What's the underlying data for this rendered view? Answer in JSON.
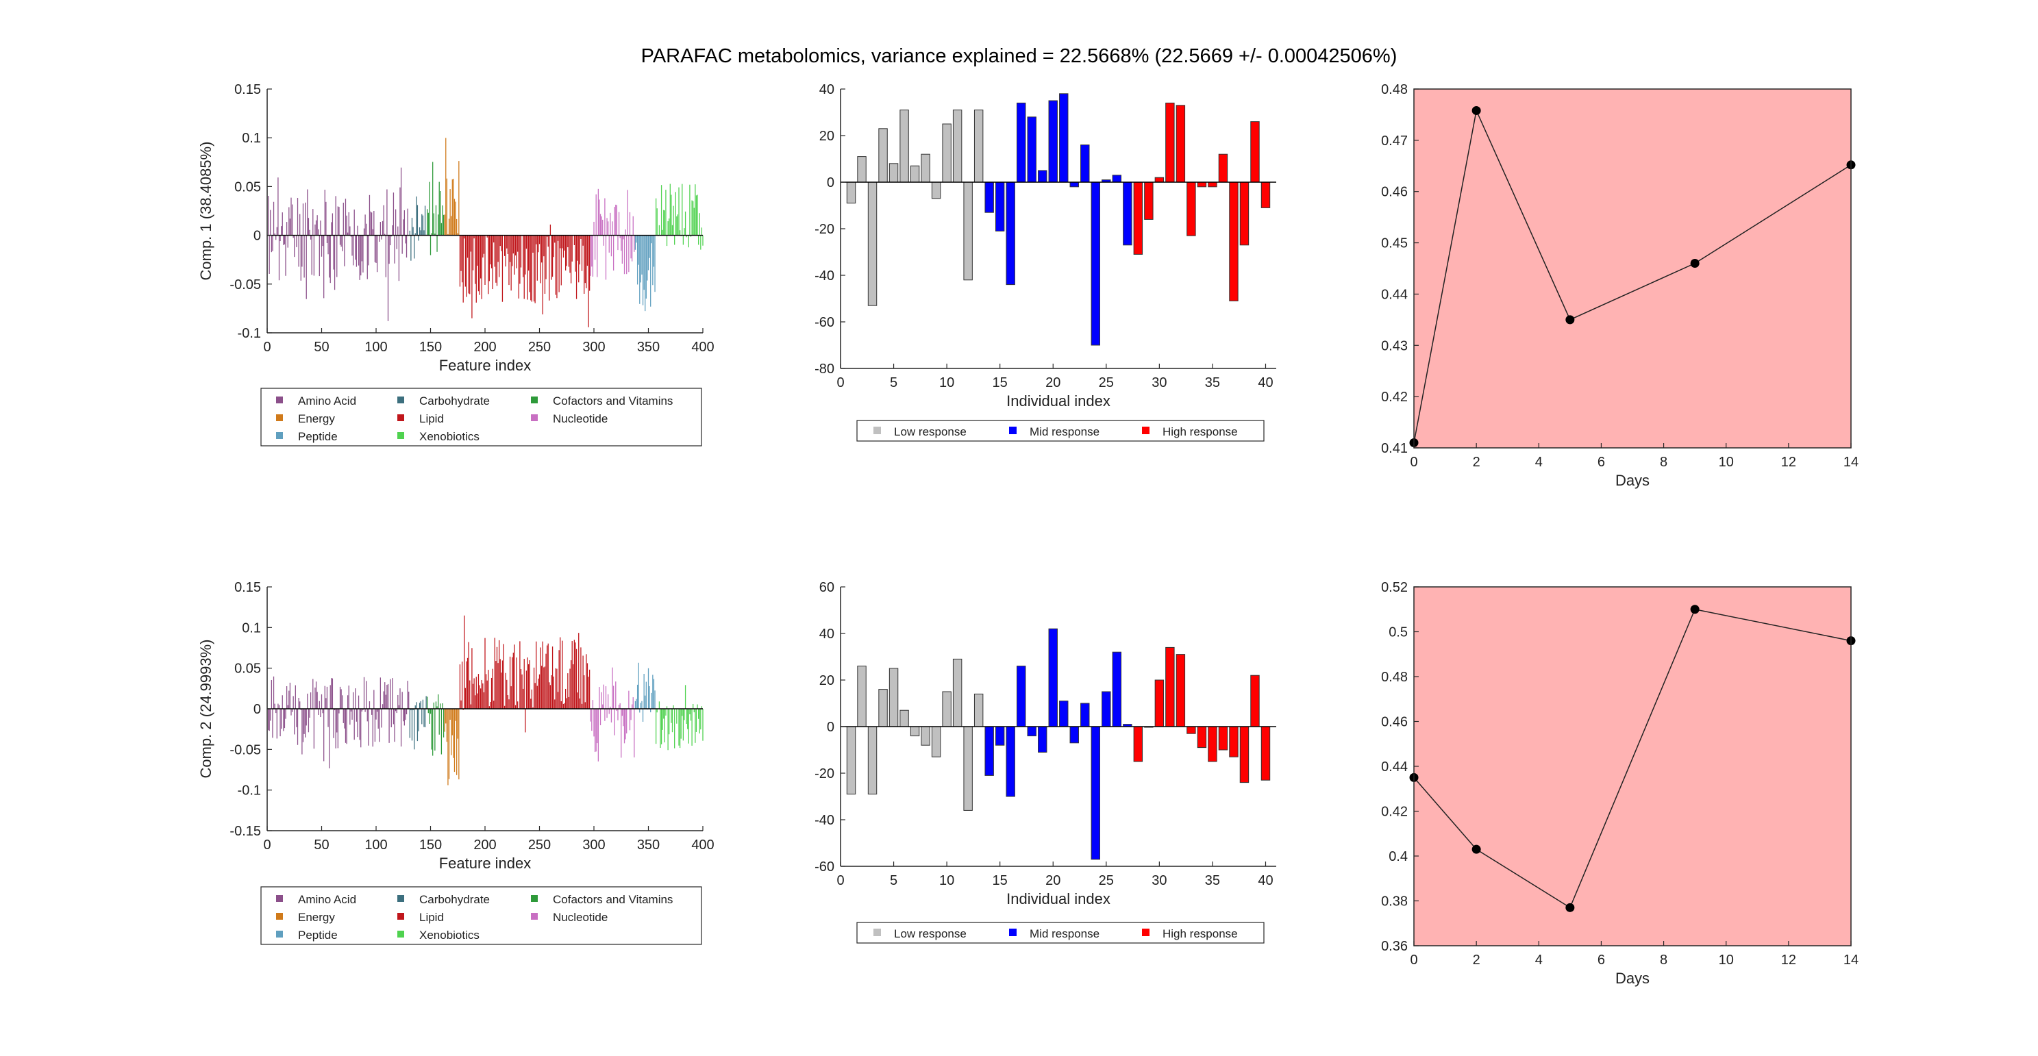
{
  "suptitle": "PARAFAC metabolomics, variance explained =  22.5668% (22.5669 +/- 0.00042506%)",
  "colors": {
    "Amino Acid": "#8b4f8a",
    "Carbohydrate": "#3c6f7e",
    "Cofactors and Vitamins": "#2e9a3a",
    "Energy": "#d07a1a",
    "Lipid": "#c0161b",
    "Nucleotide": "#c86fc2",
    "Peptide": "#5f9fbf",
    "Xenobiotics": "#4fd24f",
    "Low response": "#c0c0c0",
    "Mid response": "#0000ff",
    "High response": "#ff0000",
    "time_bg": "#ffb3b3"
  },
  "chart_data": [
    {
      "type": "bar",
      "panel": "Comp. 1 features",
      "ylabel": "Comp. 1 (38.4085%)",
      "xlabel": "Feature index",
      "xlim": [
        0,
        400
      ],
      "ylim": [
        -0.1,
        0.15
      ],
      "xticks": [
        0,
        50,
        100,
        150,
        200,
        250,
        300,
        350,
        400
      ],
      "yticks": [
        -0.1,
        -0.05,
        0,
        0.05,
        0.1,
        0.15
      ],
      "legend": [
        "Amino Acid",
        "Carbohydrate",
        "Cofactors and Vitamins",
        "Energy",
        "Lipid",
        "Nucleotide",
        "Peptide",
        "Xenobiotics"
      ],
      "groups": [
        {
          "name": "Amino Acid",
          "x": [
            1,
            130
          ],
          "seed": 11,
          "base": 0.0,
          "amp": 0.05,
          "min": -0.088,
          "max": 0.095
        },
        {
          "name": "Carbohydrate",
          "x": [
            131,
            146
          ],
          "seed": 12,
          "base": 0.0,
          "amp": 0.04,
          "min": -0.07,
          "max": 0.06
        },
        {
          "name": "Cofactors and Vitamins",
          "x": [
            147,
            162
          ],
          "seed": 13,
          "base": 0.02,
          "amp": 0.045,
          "min": -0.06,
          "max": 0.09
        },
        {
          "name": "Energy",
          "x": [
            163,
            176
          ],
          "seed": 14,
          "base": 0.03,
          "amp": 0.05,
          "min": -0.03,
          "max": 0.11
        },
        {
          "name": "Lipid",
          "x": [
            177,
            296
          ],
          "seed": 15,
          "base": -0.035,
          "amp": 0.035,
          "min": -0.098,
          "max": 0.1
        },
        {
          "name": "Nucleotide",
          "x": [
            297,
            337
          ],
          "seed": 16,
          "base": 0.0,
          "amp": 0.05,
          "min": -0.09,
          "max": 0.1
        },
        {
          "name": "Peptide",
          "x": [
            338,
            356
          ],
          "seed": 17,
          "base": -0.04,
          "amp": 0.04,
          "min": -0.095,
          "max": 0.02
        },
        {
          "name": "Xenobiotics",
          "x": [
            357,
            400
          ],
          "seed": 18,
          "base": 0.02,
          "amp": 0.035,
          "min": -0.02,
          "max": 0.1
        }
      ]
    },
    {
      "type": "bar",
      "panel": "Comp. 1 individuals",
      "xlabel": "Individual index",
      "xlim": [
        0,
        41
      ],
      "ylim": [
        -80,
        40
      ],
      "xticks": [
        0,
        5,
        10,
        15,
        20,
        25,
        30,
        35,
        40
      ],
      "yticks": [
        -80,
        -60,
        -40,
        -20,
        0,
        20,
        40
      ],
      "legend": [
        "Low response",
        "Mid response",
        "High response"
      ],
      "x": [
        1,
        2,
        3,
        4,
        5,
        6,
        7,
        8,
        9,
        10,
        11,
        12,
        13,
        14,
        15,
        16,
        17,
        18,
        19,
        20,
        21,
        22,
        23,
        24,
        25,
        26,
        27,
        28,
        29,
        30,
        31,
        32,
        33,
        34,
        35,
        36,
        37,
        38,
        39,
        40
      ],
      "values": [
        -9,
        11,
        -53,
        23,
        8,
        31,
        7,
        12,
        -7,
        25,
        31,
        -42,
        31,
        -13,
        -21,
        -44,
        34,
        28,
        5,
        35,
        38,
        -2,
        16,
        -70,
        1,
        3,
        -27,
        -31,
        -16,
        2,
        34,
        33,
        -23,
        -2,
        -2,
        12,
        -51,
        -27,
        26,
        -11
      ],
      "groups": [
        "Low response",
        "Low response",
        "Low response",
        "Low response",
        "Low response",
        "Low response",
        "Low response",
        "Low response",
        "Low response",
        "Low response",
        "Low response",
        "Low response",
        "Low response",
        "Mid response",
        "Mid response",
        "Mid response",
        "Mid response",
        "Mid response",
        "Mid response",
        "Mid response",
        "Mid response",
        "Mid response",
        "Mid response",
        "Mid response",
        "Mid response",
        "Mid response",
        "Mid response",
        "High response",
        "High response",
        "High response",
        "High response",
        "High response",
        "High response",
        "High response",
        "High response",
        "High response",
        "High response",
        "High response",
        "High response",
        "High response"
      ]
    },
    {
      "type": "line",
      "panel": "Comp. 1 time",
      "xlabel": "Days",
      "xlim": [
        0,
        14
      ],
      "ylim": [
        0.41,
        0.48
      ],
      "xticks": [
        0,
        2,
        4,
        6,
        8,
        10,
        12,
        14
      ],
      "yticks": [
        0.41,
        0.42,
        0.43,
        0.44,
        0.45,
        0.46,
        0.47,
        0.48
      ],
      "x": [
        0,
        2,
        5,
        9,
        14
      ],
      "y": [
        0.411,
        0.4758,
        0.435,
        0.446,
        0.4652
      ]
    },
    {
      "type": "bar",
      "panel": "Comp. 2 features",
      "ylabel": "Comp. 2 (24.9993%)",
      "xlabel": "Feature index",
      "xlim": [
        0,
        400
      ],
      "ylim": [
        -0.15,
        0.15
      ],
      "xticks": [
        0,
        50,
        100,
        150,
        200,
        250,
        300,
        350,
        400
      ],
      "yticks": [
        -0.15,
        -0.1,
        -0.05,
        0,
        0.05,
        0.1,
        0.15
      ],
      "legend": [
        "Amino Acid",
        "Carbohydrate",
        "Cofactors and Vitamins",
        "Energy",
        "Lipid",
        "Nucleotide",
        "Peptide",
        "Xenobiotics"
      ],
      "groups": [
        {
          "name": "Amino Acid",
          "x": [
            1,
            130
          ],
          "seed": 21,
          "base": -0.005,
          "amp": 0.045,
          "min": -0.09,
          "max": 0.08
        },
        {
          "name": "Carbohydrate",
          "x": [
            131,
            146
          ],
          "seed": 22,
          "base": -0.01,
          "amp": 0.03,
          "min": -0.05,
          "max": 0.05
        },
        {
          "name": "Cofactors and Vitamins",
          "x": [
            147,
            162
          ],
          "seed": 23,
          "base": -0.02,
          "amp": 0.04,
          "min": -0.08,
          "max": 0.04
        },
        {
          "name": "Energy",
          "x": [
            163,
            176
          ],
          "seed": 24,
          "base": -0.05,
          "amp": 0.04,
          "min": -0.1,
          "max": 0.01
        },
        {
          "name": "Lipid",
          "x": [
            177,
            296
          ],
          "seed": 25,
          "base": 0.045,
          "amp": 0.045,
          "min": -0.07,
          "max": 0.13
        },
        {
          "name": "Nucleotide",
          "x": [
            297,
            337
          ],
          "seed": 26,
          "base": -0.01,
          "amp": 0.05,
          "min": -0.1,
          "max": 0.06
        },
        {
          "name": "Peptide",
          "x": [
            338,
            356
          ],
          "seed": 27,
          "base": 0.02,
          "amp": 0.03,
          "min": -0.04,
          "max": 0.065
        },
        {
          "name": "Xenobiotics",
          "x": [
            357,
            400
          ],
          "seed": 28,
          "base": -0.02,
          "amp": 0.03,
          "min": -0.095,
          "max": 0.03
        }
      ]
    },
    {
      "type": "bar",
      "panel": "Comp. 2 individuals",
      "xlabel": "Individual index",
      "xlim": [
        0,
        41
      ],
      "ylim": [
        -60,
        60
      ],
      "xticks": [
        0,
        5,
        10,
        15,
        20,
        25,
        30,
        35,
        40
      ],
      "yticks": [
        -60,
        -40,
        -20,
        0,
        20,
        40,
        60
      ],
      "legend": [
        "Low response",
        "Mid response",
        "High response"
      ],
      "x": [
        1,
        2,
        3,
        4,
        5,
        6,
        7,
        8,
        9,
        10,
        11,
        12,
        13,
        14,
        15,
        16,
        17,
        18,
        19,
        20,
        21,
        22,
        23,
        24,
        25,
        26,
        27,
        28,
        29,
        30,
        31,
        32,
        33,
        34,
        35,
        36,
        37,
        38,
        39,
        40
      ],
      "values": [
        -29,
        26,
        -29,
        16,
        25,
        7,
        -4,
        -8,
        -13,
        15,
        29,
        -36,
        14,
        -21,
        -8,
        -30,
        26,
        -4,
        -11,
        42,
        11,
        -7,
        10,
        -57,
        15,
        32,
        1,
        -15,
        0,
        20,
        34,
        31,
        -3,
        -9,
        -15,
        -10,
        -13,
        -24,
        22,
        -23
      ],
      "groups": [
        "Low response",
        "Low response",
        "Low response",
        "Low response",
        "Low response",
        "Low response",
        "Low response",
        "Low response",
        "Low response",
        "Low response",
        "Low response",
        "Low response",
        "Low response",
        "Mid response",
        "Mid response",
        "Mid response",
        "Mid response",
        "Mid response",
        "Mid response",
        "Mid response",
        "Mid response",
        "Mid response",
        "Mid response",
        "Mid response",
        "Mid response",
        "Mid response",
        "Mid response",
        "High response",
        "High response",
        "High response",
        "High response",
        "High response",
        "High response",
        "High response",
        "High response",
        "High response",
        "High response",
        "High response",
        "High response",
        "High response"
      ]
    },
    {
      "type": "line",
      "panel": "Comp. 2 time",
      "xlabel": "Days",
      "xlim": [
        0,
        14
      ],
      "ylim": [
        0.36,
        0.52
      ],
      "xticks": [
        0,
        2,
        4,
        6,
        8,
        10,
        12,
        14
      ],
      "yticks": [
        0.36,
        0.38,
        0.4,
        0.42,
        0.44,
        0.46,
        0.48,
        0.5,
        0.52
      ],
      "x": [
        0,
        2,
        5,
        9,
        14
      ],
      "y": [
        0.435,
        0.403,
        0.377,
        0.51,
        0.496
      ]
    }
  ]
}
